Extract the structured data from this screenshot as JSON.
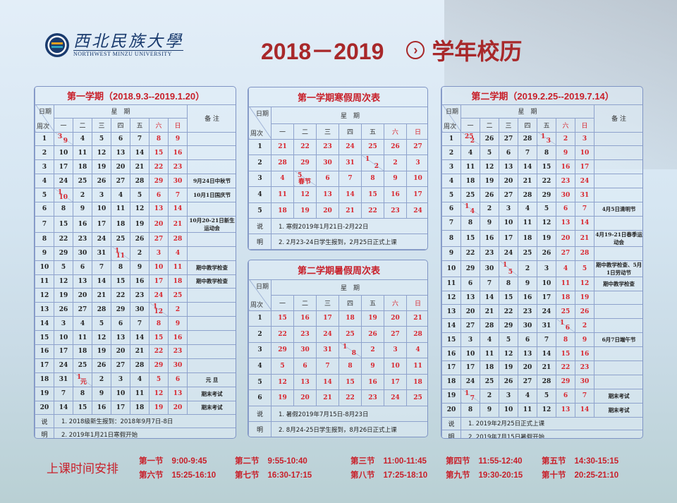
{
  "header": {
    "logo_cn": "西北民族大學",
    "logo_en": "NORTHWEST MINZU UNIVERSITY",
    "years": "2018－2019",
    "arrow_icon": "circle-chevron-right",
    "title": "学年校历"
  },
  "labels": {
    "date": "日期",
    "week": "周次",
    "xingqi": "星　期",
    "remarks": "备 注",
    "weekdays": [
      "一",
      "二",
      "三",
      "四",
      "五",
      "六",
      "日"
    ],
    "notes_label": [
      "说",
      "明"
    ]
  },
  "colors": {
    "accent": "#c8202a",
    "border": "#8ea2cc"
  },
  "sem1": {
    "title": "第一学期（2018.9.3--2019.1.20）",
    "rows": [
      {
        "w": 1,
        "d": [
          [
            "3",
            "9"
          ],
          4,
          5,
          6,
          7,
          8,
          9
        ],
        "r": ""
      },
      {
        "w": 2,
        "d": [
          10,
          11,
          12,
          13,
          14,
          15,
          16
        ],
        "r": ""
      },
      {
        "w": 3,
        "d": [
          17,
          18,
          19,
          20,
          21,
          22,
          23
        ],
        "r": ""
      },
      {
        "w": 4,
        "d": [
          24,
          25,
          26,
          27,
          28,
          29,
          30
        ],
        "r": "9月24日中秋节"
      },
      {
        "w": 5,
        "d": [
          [
            "1",
            "10"
          ],
          2,
          3,
          4,
          5,
          6,
          7
        ],
        "r": "10月1日国庆节"
      },
      {
        "w": 6,
        "d": [
          8,
          9,
          10,
          11,
          12,
          13,
          14
        ],
        "r": ""
      },
      {
        "w": 7,
        "d": [
          15,
          16,
          17,
          18,
          19,
          20,
          21
        ],
        "r": "10月20-21日新生运动会"
      },
      {
        "w": 8,
        "d": [
          22,
          23,
          24,
          25,
          26,
          27,
          28
        ],
        "r": ""
      },
      {
        "w": 9,
        "d": [
          29,
          30,
          31,
          [
            "1",
            "11"
          ],
          2,
          3,
          4
        ],
        "r": ""
      },
      {
        "w": 10,
        "d": [
          5,
          6,
          7,
          8,
          9,
          10,
          11
        ],
        "r": "期中教学检查"
      },
      {
        "w": 11,
        "d": [
          12,
          13,
          14,
          15,
          16,
          17,
          18
        ],
        "r": "期中教学检查"
      },
      {
        "w": 12,
        "d": [
          19,
          20,
          21,
          22,
          23,
          24,
          25
        ],
        "r": ""
      },
      {
        "w": 13,
        "d": [
          26,
          27,
          28,
          29,
          30,
          [
            "1",
            "12"
          ],
          2
        ],
        "r": ""
      },
      {
        "w": 14,
        "d": [
          3,
          4,
          5,
          6,
          7,
          8,
          9
        ],
        "r": ""
      },
      {
        "w": 15,
        "d": [
          10,
          11,
          12,
          13,
          14,
          15,
          16
        ],
        "r": ""
      },
      {
        "w": 16,
        "d": [
          17,
          18,
          19,
          20,
          21,
          22,
          23
        ],
        "r": ""
      },
      {
        "w": 17,
        "d": [
          24,
          25,
          26,
          27,
          28,
          29,
          30
        ],
        "r": ""
      },
      {
        "w": 18,
        "d": [
          31,
          [
            "1",
            "元"
          ],
          2,
          3,
          4,
          5,
          6
        ],
        "r": "元 旦"
      },
      {
        "w": 19,
        "d": [
          7,
          8,
          9,
          10,
          11,
          12,
          13
        ],
        "r": "期末考试"
      },
      {
        "w": 20,
        "d": [
          14,
          15,
          16,
          17,
          18,
          19,
          20
        ],
        "r": "期末考试"
      }
    ],
    "notes": [
      "1. 2018级新生报到：2018年9月7日-8日",
      "2. 2019年1月21日寒假开始"
    ]
  },
  "winter": {
    "title": "第一学期寒假周次表",
    "rows": [
      {
        "w": 1,
        "d": [
          21,
          22,
          23,
          24,
          25,
          26,
          27
        ]
      },
      {
        "w": 2,
        "d": [
          28,
          29,
          30,
          31,
          [
            "1",
            "2"
          ],
          2,
          3
        ]
      },
      {
        "w": 3,
        "d": [
          4,
          [
            "5",
            "春节"
          ],
          6,
          7,
          8,
          9,
          10
        ]
      },
      {
        "w": 4,
        "d": [
          11,
          12,
          13,
          14,
          15,
          16,
          17
        ]
      },
      {
        "w": 5,
        "d": [
          18,
          19,
          20,
          21,
          22,
          23,
          24
        ]
      }
    ],
    "notes": [
      "1. 寒假2019年1月21日-2月22日",
      "2. 2月23-24日学生报到，2月25日正式上课"
    ]
  },
  "summer": {
    "title": "第二学期暑假周次表",
    "rows": [
      {
        "w": 1,
        "d": [
          15,
          16,
          17,
          18,
          19,
          20,
          21
        ]
      },
      {
        "w": 2,
        "d": [
          22,
          23,
          24,
          25,
          26,
          27,
          28
        ]
      },
      {
        "w": 3,
        "d": [
          29,
          30,
          31,
          [
            "1",
            "8"
          ],
          2,
          3,
          4
        ]
      },
      {
        "w": 4,
        "d": [
          5,
          6,
          7,
          8,
          9,
          10,
          11
        ]
      },
      {
        "w": 5,
        "d": [
          12,
          13,
          14,
          15,
          16,
          17,
          18
        ]
      },
      {
        "w": 6,
        "d": [
          19,
          20,
          21,
          22,
          23,
          24,
          25
        ]
      }
    ],
    "notes": [
      "1. 暑假2019年7月15日-8月23日",
      "2. 8月24-25日学生报到，8月26日正式上课"
    ]
  },
  "sem2": {
    "title": "第二学期（2019.2.25--2019.7.14）",
    "rows": [
      {
        "w": 1,
        "d": [
          [
            "25",
            "2"
          ],
          26,
          27,
          28,
          [
            "1",
            "3"
          ],
          2,
          3
        ],
        "r": ""
      },
      {
        "w": 2,
        "d": [
          4,
          5,
          6,
          7,
          8,
          9,
          10
        ],
        "r": ""
      },
      {
        "w": 3,
        "d": [
          11,
          12,
          13,
          14,
          15,
          16,
          17
        ],
        "r": ""
      },
      {
        "w": 4,
        "d": [
          18,
          19,
          20,
          21,
          22,
          23,
          24
        ],
        "r": ""
      },
      {
        "w": 5,
        "d": [
          25,
          26,
          27,
          28,
          29,
          30,
          31
        ],
        "r": ""
      },
      {
        "w": 6,
        "d": [
          [
            "1",
            "4"
          ],
          2,
          3,
          4,
          5,
          6,
          7
        ],
        "r": "4月5日清明节"
      },
      {
        "w": 7,
        "d": [
          8,
          9,
          10,
          11,
          12,
          13,
          14
        ],
        "r": ""
      },
      {
        "w": 8,
        "d": [
          15,
          16,
          17,
          18,
          19,
          20,
          21
        ],
        "r": "4月19-21日春季运动会"
      },
      {
        "w": 9,
        "d": [
          22,
          23,
          24,
          25,
          26,
          27,
          28
        ],
        "r": ""
      },
      {
        "w": 10,
        "d": [
          29,
          30,
          [
            "1",
            "5"
          ],
          2,
          3,
          4,
          5
        ],
        "r": "期中教学检查、5月1日劳动节"
      },
      {
        "w": 11,
        "d": [
          6,
          7,
          8,
          9,
          10,
          11,
          12
        ],
        "r": "期中教学检查"
      },
      {
        "w": 12,
        "d": [
          13,
          14,
          15,
          16,
          17,
          18,
          19
        ],
        "r": ""
      },
      {
        "w": 13,
        "d": [
          20,
          21,
          22,
          23,
          24,
          25,
          26
        ],
        "r": ""
      },
      {
        "w": 14,
        "d": [
          27,
          28,
          29,
          30,
          31,
          [
            "1",
            "6"
          ],
          2
        ],
        "r": ""
      },
      {
        "w": 15,
        "d": [
          3,
          4,
          5,
          6,
          7,
          8,
          9
        ],
        "r": "6月7日端午节"
      },
      {
        "w": 16,
        "d": [
          10,
          11,
          12,
          13,
          14,
          15,
          16
        ],
        "r": ""
      },
      {
        "w": 17,
        "d": [
          17,
          18,
          19,
          20,
          21,
          22,
          23
        ],
        "r": ""
      },
      {
        "w": 18,
        "d": [
          24,
          25,
          26,
          27,
          28,
          29,
          30
        ],
        "r": ""
      },
      {
        "w": 19,
        "d": [
          [
            "1",
            "7"
          ],
          2,
          3,
          4,
          5,
          6,
          7
        ],
        "r": "期末考试"
      },
      {
        "w": 20,
        "d": [
          8,
          9,
          10,
          11,
          12,
          13,
          14
        ],
        "r": "期末考试"
      }
    ],
    "notes": [
      "1. 2019年2月25日正式上课",
      "2. 2019年7月15日暑假开始"
    ]
  },
  "schedule": {
    "label": "上课时间安排",
    "slots": [
      {
        "n": "第一节",
        "t": "9:00-9:45"
      },
      {
        "n": "第二节",
        "t": "9:55-10:40"
      },
      {
        "n": "第三节",
        "t": "11:00-11:45"
      },
      {
        "n": "第四节",
        "t": "11:55-12:40"
      },
      {
        "n": "第五节",
        "t": "14:30-15:15"
      },
      {
        "n": "第六节",
        "t": "15:25-16:10"
      },
      {
        "n": "第七节",
        "t": "16:30-17:15"
      },
      {
        "n": "第八节",
        "t": "17:25-18:10"
      },
      {
        "n": "第九节",
        "t": "19:30-20:15"
      },
      {
        "n": "第十节",
        "t": "20:25-21:10"
      }
    ]
  }
}
